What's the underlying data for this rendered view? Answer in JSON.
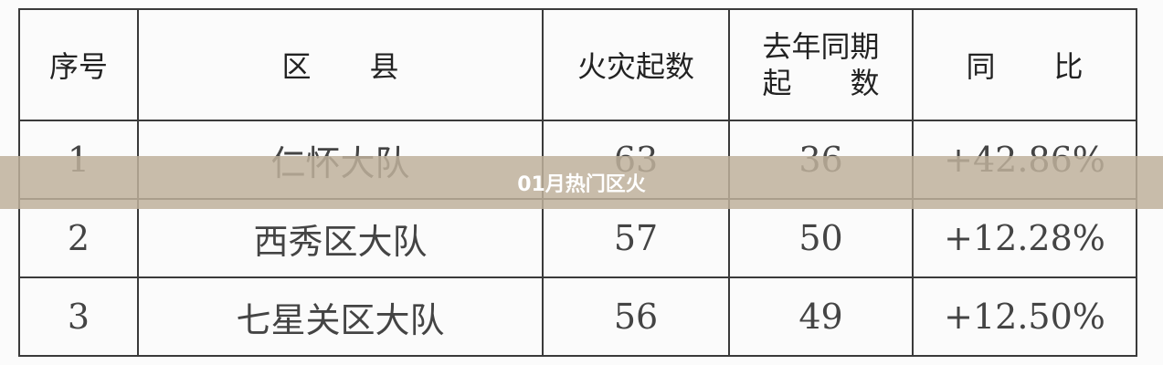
{
  "table": {
    "headers": [
      "序号",
      "区　　县",
      "火灾起数",
      "去年同期起　　数",
      "同　　比"
    ],
    "header_4_lines": [
      "去年同期",
      "起　　数"
    ],
    "rows": [
      [
        "1",
        "仁怀大队",
        "63",
        "36",
        "+42.86%"
      ],
      [
        "2",
        "西秀区大队",
        "57",
        "50",
        "+12.28%"
      ],
      [
        "3",
        "七星关区大队",
        "56",
        "49",
        "+12.50%"
      ]
    ]
  },
  "overlay": {
    "title": "01月热门区火",
    "color": "#bfb09b"
  }
}
